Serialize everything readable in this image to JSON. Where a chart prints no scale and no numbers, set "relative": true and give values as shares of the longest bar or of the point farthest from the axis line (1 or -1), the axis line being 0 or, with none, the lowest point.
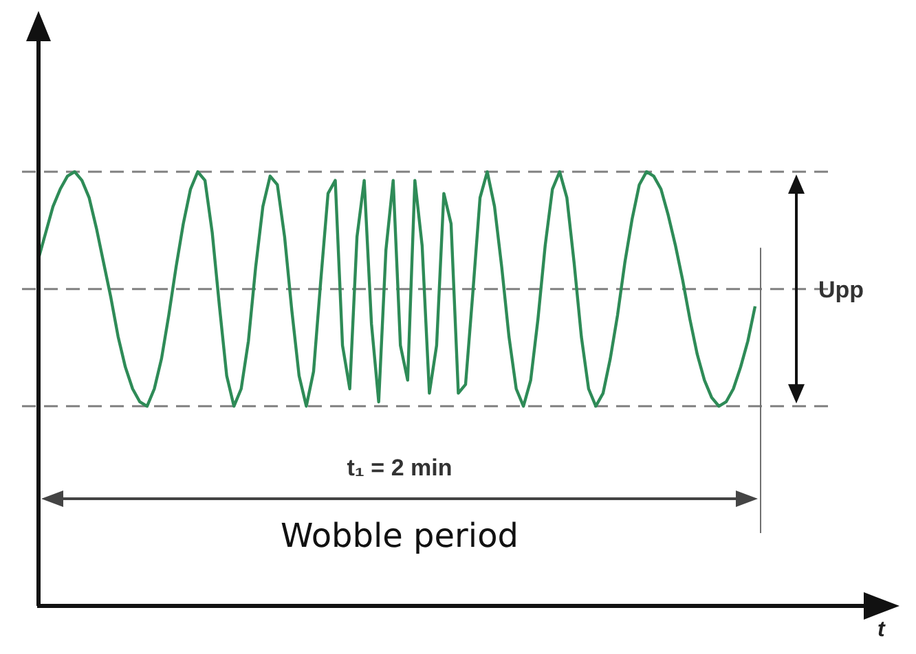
{
  "chart_data": {
    "type": "line",
    "relative": true,
    "marker": "none",
    "line_style": "solid",
    "categories": [
      null,
      null,
      null,
      null,
      null,
      null,
      null,
      null,
      null,
      null,
      null,
      null,
      null,
      null,
      null,
      null,
      null,
      null,
      null,
      null,
      null,
      null,
      null,
      null,
      null,
      null,
      null,
      null,
      null,
      null,
      null,
      null,
      null,
      null,
      null,
      null,
      null,
      null,
      null,
      null,
      null,
      null,
      null,
      null,
      null,
      null,
      null,
      null,
      null,
      null,
      null,
      null,
      null,
      null,
      null,
      null,
      null,
      null,
      null,
      null,
      null,
      null,
      null,
      null,
      null,
      null,
      null,
      null,
      null,
      null,
      null,
      null,
      null,
      null,
      null,
      null,
      null,
      null,
      null,
      null,
      null,
      null,
      null,
      null,
      null,
      null,
      null,
      null,
      null,
      null,
      null,
      null,
      null,
      null,
      null,
      null,
      null,
      null,
      null,
      null
    ],
    "series": [
      {
        "color": "#2e8b57",
        "values": [
          0.8,
          0.86,
          0.92,
          0.96,
          0.99,
          1,
          0.98,
          0.94,
          0.87,
          0.79,
          0.71,
          0.62,
          0.55,
          0.5,
          0.47,
          0.46,
          0.5,
          0.57,
          0.67,
          0.78,
          0.88,
          0.96,
          1,
          0.98,
          0.86,
          0.69,
          0.53,
          0.46,
          0.5,
          0.61,
          0.78,
          0.92,
          0.99,
          0.97,
          0.85,
          0.68,
          0.53,
          0.46,
          0.54,
          0.75,
          0.95,
          0.98,
          0.6,
          0.5,
          0.85,
          0.98,
          0.65,
          0.47,
          0.82,
          0.98,
          0.6,
          0.52,
          0.98,
          0.83,
          0.49,
          0.6,
          0.95,
          0.88,
          0.49,
          0.51,
          0.72,
          0.94,
          1,
          0.92,
          0.78,
          0.62,
          0.5,
          0.46,
          0.52,
          0.66,
          0.83,
          0.96,
          1,
          0.94,
          0.79,
          0.62,
          0.5,
          0.46,
          0.49,
          0.57,
          0.67,
          0.79,
          0.89,
          0.97,
          1,
          0.99,
          0.96,
          0.9,
          0.83,
          0.75,
          0.66,
          0.58,
          0.52,
          0.48,
          0.46,
          0.47,
          0.5,
          0.55,
          0.61,
          0.69
        ]
      }
    ],
    "ref_lines": [
      {
        "axis": "y",
        "value": 1,
        "color": "#808080",
        "line_style": "dashed"
      },
      {
        "axis": "y",
        "value": 0.73,
        "color": "#808080",
        "line_style": "dashed"
      },
      {
        "axis": "y",
        "value": 0.46,
        "color": "#808080",
        "line_style": "dashed"
      }
    ],
    "annotations": [
      "Upp",
      "t₁ = 2 min",
      "Wobble period",
      "t"
    ]
  }
}
